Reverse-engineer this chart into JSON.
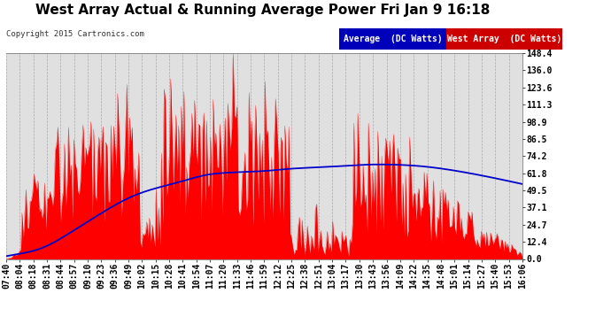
{
  "title": "West Array Actual & Running Average Power Fri Jan 9 16:18",
  "copyright": "Copyright 2015 Cartronics.com",
  "legend_avg": "Average  (DC Watts)",
  "legend_west": "West Array  (DC Watts)",
  "ylabel_right_values": [
    148.4,
    136.0,
    123.6,
    111.3,
    98.9,
    86.5,
    74.2,
    61.8,
    49.5,
    37.1,
    24.7,
    12.4,
    0.0
  ],
  "ymax": 148.4,
  "ymin": 0.0,
  "background_color": "#ffffff",
  "plot_bg_color": "#e0e0e0",
  "bar_color": "#ff0000",
  "avg_line_color": "#0000cc",
  "title_fontsize": 11,
  "tick_fontsize": 7,
  "copyright_fontsize": 6.5,
  "legend_fontsize": 7,
  "x_tick_labels": [
    "07:40",
    "08:04",
    "08:18",
    "08:31",
    "08:44",
    "08:57",
    "09:10",
    "09:23",
    "09:36",
    "09:49",
    "10:02",
    "10:15",
    "10:28",
    "10:41",
    "10:54",
    "11:07",
    "11:20",
    "11:33",
    "11:46",
    "11:59",
    "12:12",
    "12:25",
    "12:38",
    "12:51",
    "13:04",
    "13:17",
    "13:30",
    "13:43",
    "13:56",
    "14:09",
    "14:22",
    "14:35",
    "14:48",
    "15:01",
    "15:14",
    "15:27",
    "15:40",
    "15:53",
    "16:06"
  ],
  "avg_shape_x": [
    0,
    0.03,
    0.07,
    0.12,
    0.18,
    0.25,
    0.3,
    0.35,
    0.38,
    0.42,
    0.48,
    0.52,
    0.55,
    0.6,
    0.65,
    0.7,
    0.75,
    0.8,
    0.88,
    0.95,
    1.0
  ],
  "avg_shape_y": [
    2,
    4,
    8,
    18,
    32,
    46,
    52,
    57,
    60,
    62,
    63,
    64,
    65,
    66,
    67,
    68,
    68,
    67,
    63,
    58,
    54
  ]
}
